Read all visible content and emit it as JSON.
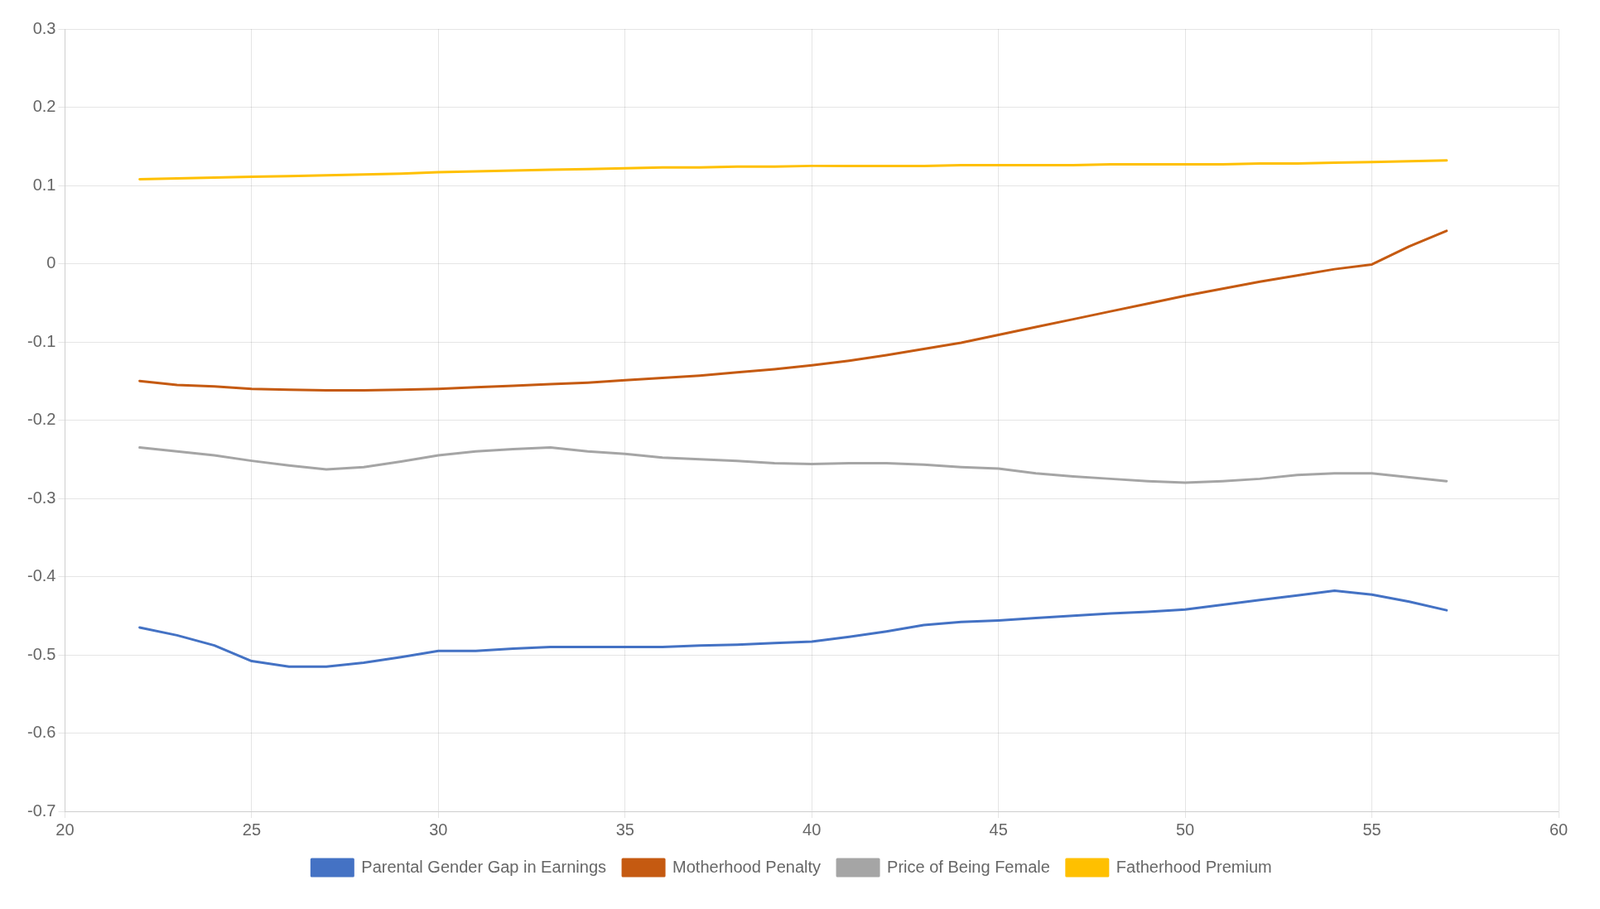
{
  "chart_data": {
    "type": "line",
    "x": [
      22,
      23,
      24,
      25,
      26,
      27,
      28,
      29,
      30,
      31,
      32,
      33,
      34,
      35,
      36,
      37,
      38,
      39,
      40,
      41,
      42,
      43,
      44,
      45,
      46,
      47,
      48,
      49,
      50,
      51,
      52,
      53,
      54,
      55,
      56,
      57
    ],
    "series": [
      {
        "name": "Parental Gender Gap in Earnings",
        "color": "#4472C4",
        "values": [
          -0.465,
          -0.475,
          -0.488,
          -0.508,
          -0.515,
          -0.515,
          -0.51,
          -0.503,
          -0.495,
          -0.495,
          -0.492,
          -0.49,
          -0.49,
          -0.49,
          -0.49,
          -0.488,
          -0.487,
          -0.485,
          -0.483,
          -0.477,
          -0.47,
          -0.462,
          -0.458,
          -0.456,
          -0.453,
          -0.45,
          -0.447,
          -0.445,
          -0.442,
          -0.436,
          -0.43,
          -0.424,
          -0.418,
          -0.423,
          -0.432,
          -0.443
        ]
      },
      {
        "name": "Motherhood Penalty",
        "color": "#C55A11",
        "values": [
          -0.15,
          -0.155,
          -0.157,
          -0.16,
          -0.161,
          -0.162,
          -0.162,
          -0.161,
          -0.16,
          -0.158,
          -0.156,
          -0.154,
          -0.152,
          -0.149,
          -0.146,
          -0.143,
          -0.139,
          -0.135,
          -0.13,
          -0.124,
          -0.117,
          -0.109,
          -0.101,
          -0.091,
          -0.081,
          -0.071,
          -0.061,
          -0.051,
          -0.041,
          -0.032,
          -0.023,
          -0.015,
          -0.007,
          -0.001,
          0.022,
          0.042
        ]
      },
      {
        "name": "Price of Being Female",
        "color": "#A5A5A5",
        "values": [
          -0.235,
          -0.24,
          -0.245,
          -0.252,
          -0.258,
          -0.263,
          -0.26,
          -0.253,
          -0.245,
          -0.24,
          -0.237,
          -0.235,
          -0.24,
          -0.243,
          -0.248,
          -0.25,
          -0.252,
          -0.255,
          -0.256,
          -0.255,
          -0.255,
          -0.257,
          -0.26,
          -0.262,
          -0.268,
          -0.272,
          -0.275,
          -0.278,
          -0.28,
          -0.278,
          -0.275,
          -0.27,
          -0.268,
          -0.268,
          -0.273,
          -0.278
        ]
      },
      {
        "name": "Fatherhood Premium",
        "color": "#FFC000",
        "values": [
          0.108,
          0.109,
          0.11,
          0.111,
          0.112,
          0.113,
          0.114,
          0.115,
          0.117,
          0.118,
          0.119,
          0.12,
          0.121,
          0.122,
          0.123,
          0.123,
          0.124,
          0.124,
          0.125,
          0.125,
          0.125,
          0.125,
          0.126,
          0.126,
          0.126,
          0.126,
          0.127,
          0.127,
          0.127,
          0.127,
          0.128,
          0.128,
          0.129,
          0.13,
          0.131,
          0.132
        ]
      }
    ],
    "xlim": [
      20,
      60
    ],
    "xticks": [
      20,
      25,
      30,
      35,
      40,
      45,
      50,
      55,
      60
    ],
    "ylim": [
      -0.7,
      0.3
    ],
    "yticks": [
      -0.7,
      -0.6,
      -0.5,
      -0.4,
      -0.3,
      -0.2,
      -0.1,
      0,
      0.1,
      0.2,
      0.3
    ],
    "grid": true,
    "legend": "bottom"
  }
}
